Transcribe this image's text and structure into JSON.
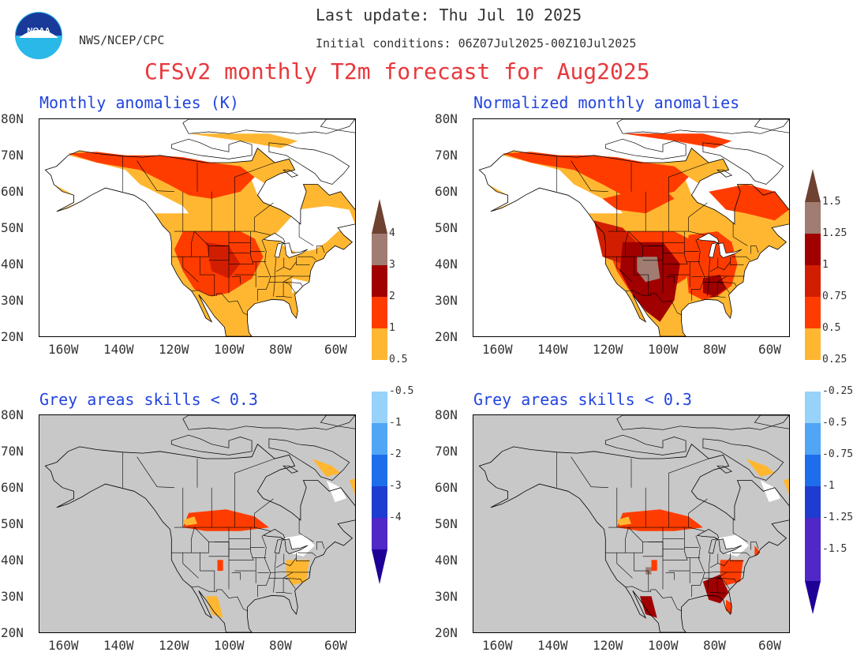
{
  "header": {
    "last_update": "Last update: Thu Jul 10 2025",
    "initial_conditions": "Initial conditions: 06Z07Jul2025-00Z10Jul2025",
    "agency": "NWS/NCEP/CPC",
    "logo_text": "NOAA",
    "title": "CFSv2 monthly T2m forecast for Aug2025"
  },
  "panels": [
    {
      "title": "Monthly anomalies (K)",
      "background": "#ffffff"
    },
    {
      "title": "Normalized monthly anomalies",
      "background": "#ffffff"
    },
    {
      "title": "Grey areas skills < 0.3",
      "background": "#c8c8c8"
    },
    {
      "title": "Grey areas skills < 0.3",
      "background": "#c8c8c8"
    }
  ],
  "axes": {
    "lat_labels": [
      "80N",
      "70N",
      "60N",
      "50N",
      "40N",
      "30N",
      "20N"
    ],
    "lon_labels": [
      "160W",
      "140W",
      "120W",
      "100W",
      "80W",
      "60W"
    ]
  },
  "colorbar_left": {
    "labels": [
      "4",
      "3",
      "2",
      "1",
      "0.5",
      "-0.5",
      "-1",
      "-2",
      "-3",
      "-4"
    ]
  },
  "colorbar_right": {
    "labels": [
      "1.5",
      "1.25",
      "1",
      "0.75",
      "0.5",
      "0.25",
      "-0.25",
      "-0.5",
      "-0.75",
      "-1",
      "-1.25",
      "-1.5"
    ]
  },
  "colors": {
    "c_light_orange": "#ffb732",
    "c_orange_red": "#ff3c00",
    "c_red": "#d21e00",
    "c_dark_red": "#a00000",
    "c_grey_brown": "#a07c72",
    "c_brown": "#6e4130",
    "c_white": "#ffffff",
    "c_light_blue": "#96d2fa",
    "c_blue1": "#50a5f5",
    "c_blue2": "#1e6eeb",
    "c_blue3": "#1e3cd0",
    "c_purple": "#5028c8",
    "c_dark_purple": "#1e0096"
  }
}
